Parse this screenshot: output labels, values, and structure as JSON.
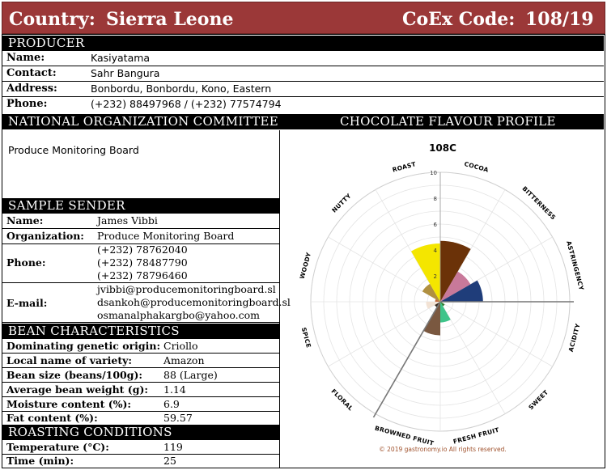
{
  "banner": {
    "country_label": "Country:",
    "country": "Sierra Leone",
    "coex_label": "CoEx Code:",
    "coex": "108/19"
  },
  "producer": {
    "heading": "PRODUCER",
    "rows": [
      {
        "label": "Name:",
        "value": "Kasiyatama"
      },
      {
        "label": "Contact:",
        "value": "Sahr Bangura"
      },
      {
        "label": "Address:",
        "value": "Bonbordu, Bonbordu, Kono, Eastern"
      },
      {
        "label": "Phone:",
        "value": "(+232) 88497968 / (+232) 77574794"
      }
    ]
  },
  "committee": {
    "heading": "NATIONAL ORGANIZATION COMMITTEE",
    "value": "Produce Monitoring Board"
  },
  "sender": {
    "heading": "SAMPLE SENDER",
    "name_label": "Name:",
    "name": "James Vibbi",
    "org_label": "Organization:",
    "org": "Produce Monitoring Board",
    "phone_label": "Phone:",
    "phones": [
      "(+232) 78762040",
      "(+232) 78487790",
      "(+232) 78796460"
    ],
    "email_label": "E-mail:",
    "emails": [
      "jvibbi@producemonitoringboard.sl",
      "dsankoh@producemonitoringboard.sl",
      "osmanalphakargbo@yahoo.com"
    ]
  },
  "bean": {
    "heading": "BEAN CHARACTERISTICS",
    "rows": [
      {
        "label": "Dominating genetic origin:",
        "value": "Criollo"
      },
      {
        "label": "Local name of variety:",
        "value": "Amazon"
      },
      {
        "label": "Bean size (beans/100g):",
        "value": "88 (Large)"
      },
      {
        "label": "Average bean weight (g):",
        "value": "1.14"
      },
      {
        "label": "Moisture content (%):",
        "value": "6.9"
      },
      {
        "label": "Fat content (%):",
        "value": "59.57"
      }
    ]
  },
  "roasting": {
    "heading": "ROASTING CONDITIONS",
    "rows": [
      {
        "label": "Temperature (°C):",
        "value": "119"
      },
      {
        "label": "Time (min):",
        "value": "25"
      }
    ]
  },
  "flavour": {
    "heading": "CHOCOLATE FLAVOUR PROFILE",
    "copyright": "© 2019 gastronomy.io All rights reserved."
  },
  "chart_data": {
    "type": "polar-bar",
    "title": "108C",
    "rmax": 10,
    "ticks": [
      2,
      4,
      6,
      8,
      10
    ],
    "categories": [
      "COCOA",
      "BITTERNESS",
      "ASTRINGENCY",
      "ACIDITY",
      "FRESH FRUIT",
      "BROWNED FRUIT",
      "NUTTY",
      "FLORAL",
      "WOODY",
      "SPICE",
      "ROAST",
      "SWEET"
    ],
    "series": [
      {
        "values": [
          {
            "category": "COCOA",
            "value": 4.7,
            "color": "#6b3208"
          },
          {
            "category": "BITTERNESS",
            "value": 2.7,
            "color": "#c8799a"
          },
          {
            "category": "ASTRINGENCY",
            "value": 3.3,
            "color": "#1f3d7a"
          },
          {
            "category": "ACIDITY",
            "value": 0,
            "color": "#cccccc"
          },
          {
            "category": "FRESH FRUIT",
            "value": 0.4,
            "color": "#2c7d2c"
          },
          {
            "category": "BROWNED FRUIT",
            "value": 1.6,
            "color": "#3ec48a"
          },
          {
            "category": "NUTTY",
            "value": 2.6,
            "color": "#7a5840"
          },
          {
            "category": "FLORAL",
            "value": 0.5,
            "color": "#3a2a1e"
          },
          {
            "category": "WOODY",
            "value": 1.1,
            "color": "#f2e2d4"
          },
          {
            "category": "SPICE",
            "value": 0.4,
            "color": "#c06a3e"
          },
          {
            "category": "ROAST",
            "value": 1.6,
            "color": "#b09040"
          },
          {
            "category": "SWEET",
            "value": 4.5,
            "color": "#f4e600"
          }
        ]
      }
    ],
    "axis_labels": [
      "ROAST",
      "COCOA",
      "BITTERNESS",
      "ASTRINGENCY",
      "ACIDITY",
      "SWEET",
      "FRESH FRUIT",
      "BROWNED FRUIT",
      "FLORAL",
      "SPICE",
      "WOODY",
      "NUTTY"
    ]
  }
}
